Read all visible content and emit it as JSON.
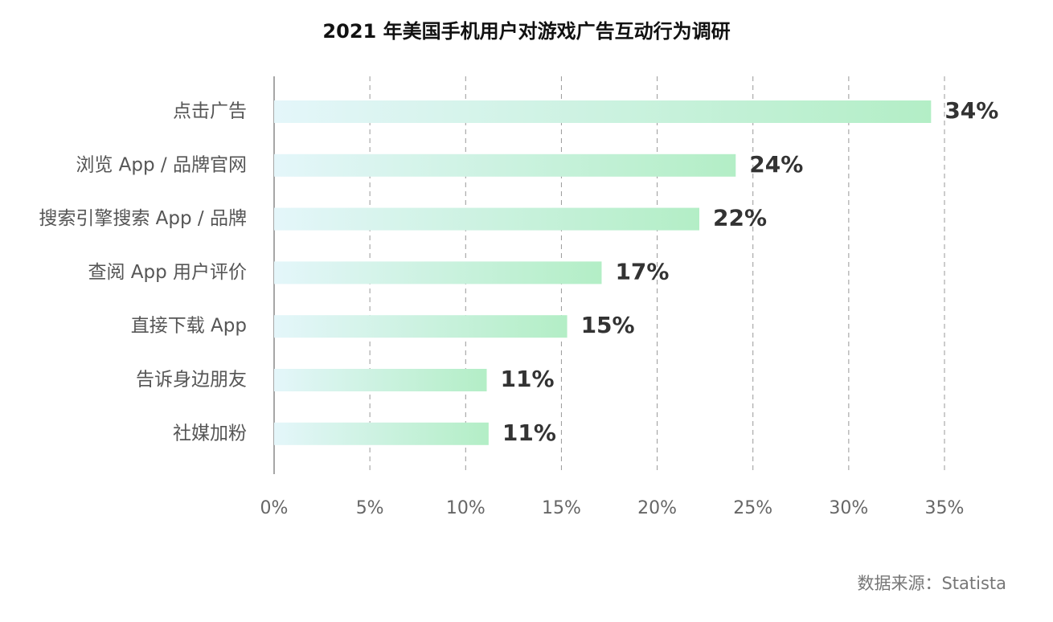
{
  "chart_data": {
    "type": "bar",
    "orientation": "horizontal",
    "title": "2021 年美国手机用户对游戏广告互动行为调研",
    "categories": [
      "点击广告",
      "浏览 App / 品牌官网",
      "搜索引擎搜索 App / 品牌",
      "查阅 App 用户评价",
      "直接下载 App",
      "告诉身边朋友",
      "社媒加粉"
    ],
    "values": [
      34.3,
      24.1,
      22.2,
      17.1,
      15.3,
      11.1,
      11.2
    ],
    "value_labels": [
      "34%",
      "24%",
      "22%",
      "17%",
      "15%",
      "11%",
      "11%"
    ],
    "color": [
      "#e4f6fa",
      "#b3eec6"
    ],
    "xlim": [
      0,
      35
    ],
    "xticks": [
      {
        "value": 0,
        "label": "0%"
      },
      {
        "value": 5,
        "label": "5%"
      },
      {
        "value": 10,
        "label": "10%"
      },
      {
        "value": 15,
        "label": "15%"
      },
      {
        "value": 20,
        "label": "20%"
      },
      {
        "value": 25,
        "label": "25%"
      },
      {
        "value": 30,
        "label": "30%"
      },
      {
        "value": 35,
        "label": "35%"
      }
    ],
    "grid": true,
    "source": "数据来源：Statista"
  }
}
